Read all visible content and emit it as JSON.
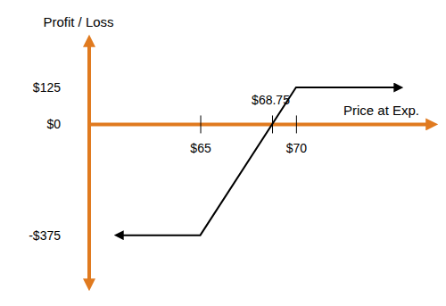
{
  "chart_data": {
    "type": "line",
    "x_label": "Price at Exp.",
    "y_label": "Profit / Loss",
    "x": [
      60.9,
      65,
      70,
      75.2
    ],
    "values": [
      -375,
      -375,
      125,
      125
    ],
    "color": "#000000",
    "xlim": [
      59.2,
      76.9
    ],
    "ylim": [
      -530,
      270
    ],
    "xticks": [
      {
        "value": 65,
        "label": "$65"
      },
      {
        "value": 68.75,
        "label": "$68.75"
      },
      {
        "value": 70,
        "label": "$70"
      }
    ],
    "yticks": [
      {
        "value": -375,
        "label": "-$375"
      },
      {
        "value": 0,
        "label": "$0"
      },
      {
        "value": 125,
        "label": "$125"
      }
    ],
    "grid": false
  }
}
